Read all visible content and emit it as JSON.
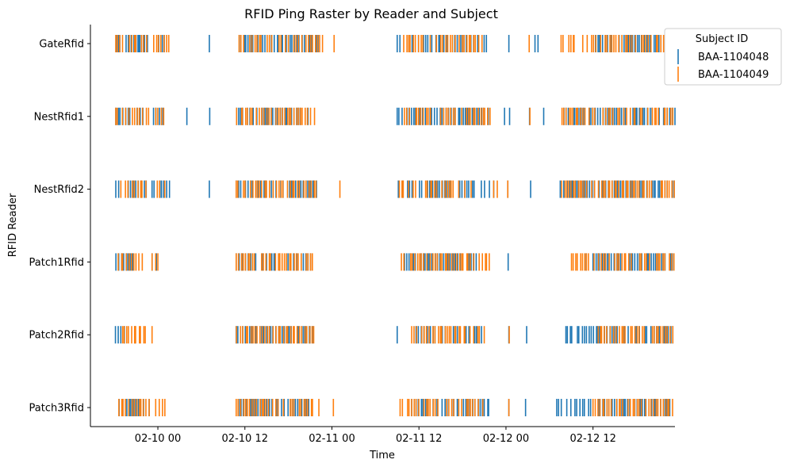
{
  "chart_data": {
    "type": "raster",
    "title": "RFID Ping Raster by Reader and Subject",
    "xlabel": "Time",
    "ylabel": "RFID Reader",
    "x_unit": "hours since 2020-02-10 00:00",
    "xlim": [
      -9.3,
      71.3
    ],
    "x_ticks": [
      {
        "value": 0,
        "label": "02-10 00"
      },
      {
        "value": 12,
        "label": "02-10 12"
      },
      {
        "value": 24,
        "label": "02-11 00"
      },
      {
        "value": 36,
        "label": "02-11 12"
      },
      {
        "value": 48,
        "label": "02-12 00"
      },
      {
        "value": 60,
        "label": "02-12 12"
      }
    ],
    "readers": [
      "GateRfid",
      "NestRfid1",
      "NestRfid2",
      "Patch1Rfid",
      "Patch2Rfid",
      "Patch3Rfid"
    ],
    "legend": {
      "title": "Subject ID",
      "placement": "upper right, outside plot",
      "entries": [
        {
          "name": "BAA-1104048",
          "color": "#1f77b4"
        },
        {
          "name": "BAA-1104049",
          "color": "#ff7f0e"
        }
      ]
    },
    "series": [
      {
        "name": "BAA-1104048",
        "color": "#1f77b4",
        "reader_active_windows_hours": {
          "GateRfid": [
            [
              -5.8,
              -1.4
            ],
            [
              -3.4,
              -1.4
            ],
            [
              -0.4,
              1.0
            ],
            [
              7.0,
              7.2
            ],
            [
              11.2,
              17.4
            ],
            [
              16.5,
              22.1
            ],
            [
              33.0,
              34.6
            ],
            [
              35.0,
              42.0
            ],
            [
              42.2,
              45.4
            ],
            [
              48.2,
              48.6
            ],
            [
              52.0,
              52.5
            ],
            [
              60.0,
              71.0
            ]
          ],
          "NestRfid1": [
            [
              -5.8,
              -1.5
            ],
            [
              -0.6,
              1.2
            ],
            [
              3.9,
              4.1
            ],
            [
              7.1,
              7.2
            ],
            [
              10.8,
              21.0
            ],
            [
              33.0,
              45.6
            ],
            [
              47.8,
              48.5
            ],
            [
              51.2,
              51.3
            ],
            [
              53.0,
              53.4
            ],
            [
              55.6,
              71.3
            ]
          ],
          "NestRfid2": [
            [
              -5.8,
              -1.6
            ],
            [
              -0.8,
              1.6
            ],
            [
              7.0,
              7.2
            ],
            [
              10.8,
              21.9
            ],
            [
              33.1,
              43.6
            ],
            [
              44.6,
              46.4
            ],
            [
              48.1,
              48.4
            ],
            [
              51.3,
              51.5
            ],
            [
              55.4,
              71.2
            ]
          ],
          "Patch1Rfid": [
            [
              -5.8,
              -3.0
            ],
            [
              -0.8,
              -0.2
            ],
            [
              10.8,
              21.4
            ],
            [
              34.0,
              43.9
            ],
            [
              48.2,
              48.4
            ],
            [
              58.9,
              59.2
            ],
            [
              60.0,
              71.0
            ]
          ],
          "Patch2Rfid": [
            [
              -5.9,
              -4.6
            ],
            [
              -3.3,
              -3.0
            ],
            [
              10.8,
              21.4
            ],
            [
              32.8,
              33.2
            ],
            [
              35.6,
              41.3
            ],
            [
              42.5,
              45.0
            ],
            [
              48.3,
              48.5
            ],
            [
              50.7,
              51.0
            ],
            [
              56.2,
              71.0
            ]
          ],
          "Patch3Rfid": [
            [
              -5.4,
              -1.2
            ],
            [
              10.9,
              21.2
            ],
            [
              35.0,
              45.7
            ],
            [
              48.2,
              48.6
            ],
            [
              50.5,
              50.9
            ],
            [
              55.0,
              71.2
            ]
          ]
        }
      },
      {
        "name": "BAA-1104049",
        "color": "#ff7f0e",
        "reader_active_windows_hours": {
          "GateRfid": [
            [
              -5.9,
              -1.3
            ],
            [
              -0.9,
              1.5
            ],
            [
              11.1,
              22.4
            ],
            [
              22.6,
              22.8
            ],
            [
              24.2,
              24.4
            ],
            [
              33.9,
              38.5
            ],
            [
              39.0,
              45.1
            ],
            [
              51.1,
              51.3
            ],
            [
              55.6,
              71.2
            ]
          ],
          "NestRfid1": [
            [
              -5.9,
              -1.2
            ],
            [
              -0.3,
              0.8
            ],
            [
              10.8,
              21.6
            ],
            [
              34.0,
              35.6
            ],
            [
              35.6,
              41.0
            ],
            [
              41.5,
              45.8
            ],
            [
              51.2,
              51.4
            ],
            [
              55.7,
              71.0
            ]
          ],
          "NestRfid2": [
            [
              -5.9,
              -1.4
            ],
            [
              -0.5,
              1.0
            ],
            [
              10.8,
              21.8
            ],
            [
              25.0,
              25.2
            ],
            [
              33.3,
              43.4
            ],
            [
              46.3,
              46.8
            ],
            [
              48.1,
              48.4
            ],
            [
              55.4,
              71.2
            ]
          ],
          "Patch1Rfid": [
            [
              -5.8,
              -1.9
            ],
            [
              -0.8,
              0.0
            ],
            [
              10.8,
              21.3
            ],
            [
              33.5,
              45.7
            ],
            [
              56.6,
              71.2
            ]
          ],
          "Patch2Rfid": [
            [
              -5.3,
              -1.3
            ],
            [
              -0.9,
              -0.7
            ],
            [
              10.8,
              21.5
            ],
            [
              35.0,
              45.4
            ],
            [
              48.3,
              48.6
            ],
            [
              60.0,
              71.0
            ]
          ],
          "Patch3Rfid": [
            [
              -5.4,
              -1.2
            ],
            [
              -0.3,
              1.1
            ],
            [
              10.8,
              21.4
            ],
            [
              22.1,
              22.3
            ],
            [
              24.1,
              24.3
            ],
            [
              33.4,
              44.8
            ],
            [
              48.2,
              48.6
            ],
            [
              60.0,
              71.2
            ]
          ]
        }
      }
    ]
  }
}
